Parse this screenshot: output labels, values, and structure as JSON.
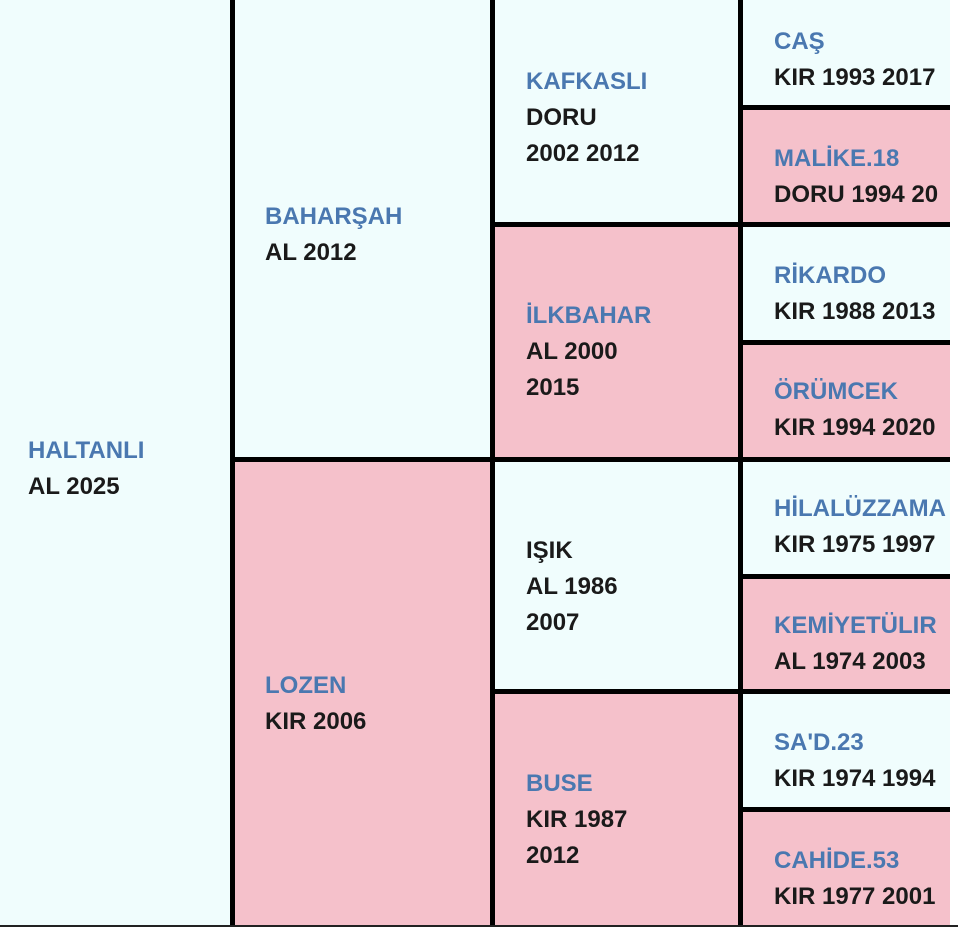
{
  "subject": {
    "name": "HALTANLI",
    "info": "AL 2025"
  },
  "sire": {
    "name": "BAHARŞAH",
    "info": "AL 2012"
  },
  "dam": {
    "name": "LOZEN",
    "info": "KIR 2006"
  },
  "sire_sire": {
    "name": "KAFKASLI",
    "info1": "DORU",
    "info2": "2002 2012"
  },
  "sire_dam": {
    "name": "İLKBAHAR",
    "info1": "AL 2000",
    "info2": "2015"
  },
  "dam_sire": {
    "name": "IŞIK",
    "info1": "AL 1986",
    "info2": "2007"
  },
  "dam_dam": {
    "name": "BUSE",
    "info1": "KIR 1987",
    "info2": "2012"
  },
  "gen3": [
    {
      "name": "CAŞ",
      "info": "KIR 1993 2017"
    },
    {
      "name": "MALİKE.18",
      "info": "DORU 1994 20"
    },
    {
      "name": "RİKARDO",
      "info": "KIR 1988 2013"
    },
    {
      "name": "ÖRÜMCEK",
      "info": "KIR 1994 2020"
    },
    {
      "name": "HİLALÜZZAMA",
      "info": "KIR 1975 1997"
    },
    {
      "name": "KEMİYETÜLIR",
      "info": "AL 1974 2003"
    },
    {
      "name": "SA'D.23",
      "info": "KIR 1974 1994"
    },
    {
      "name": "CAHİDE.53",
      "info": "KIR 1977 2001"
    }
  ],
  "colors": {
    "male_background": "#f0fdfd",
    "female_background": "#f5c1cb",
    "name_link": "#4a78b0",
    "text": "#1a1a1a",
    "border": "#000000"
  }
}
